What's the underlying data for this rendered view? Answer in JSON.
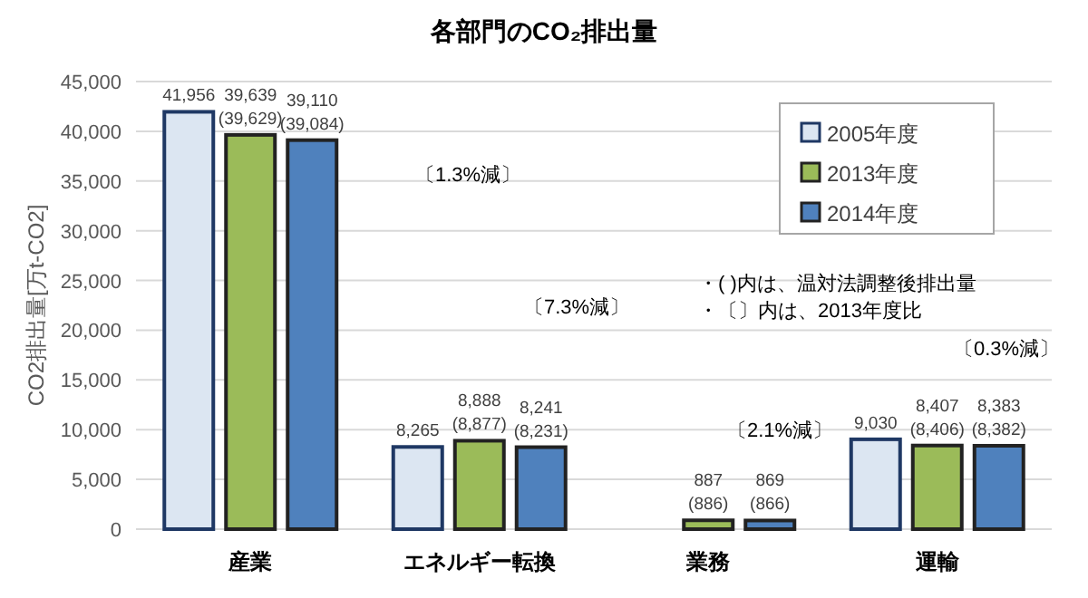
{
  "chart_data": {
    "type": "bar",
    "title": "各部門のCO₂排出量",
    "ylabel": "CO2排出量[万t-CO2]",
    "categories": [
      "産業",
      "エネルギー転換",
      "業務",
      "運輸"
    ],
    "series": [
      {
        "name": "2005年度",
        "color": "#dce6f2",
        "values": [
          41956,
          8265,
          null,
          9030
        ],
        "value_labels": [
          "41,956",
          "8,265",
          null,
          "9,030"
        ]
      },
      {
        "name": "2013年度",
        "color": "#9bbb59",
        "values": [
          39639,
          8888,
          887,
          8407
        ],
        "value_labels": [
          "39,639 (39,629)",
          "8,888 (8,877)",
          "887 (886)",
          "8,407 (8,406)"
        ]
      },
      {
        "name": "2014年度",
        "color": "#4f81bd",
        "values": [
          39110,
          8241,
          869,
          8383
        ],
        "value_labels": [
          "39,110 (39,084)",
          "8,241 (8,231)",
          "869 (866)",
          "8,383 (8,382)"
        ]
      }
    ],
    "ylim": [
      0,
      45000
    ],
    "yticks": [
      {
        "value": 0,
        "label": "0"
      },
      {
        "value": 5000,
        "label": "5,000"
      },
      {
        "value": 10000,
        "label": "10,000"
      },
      {
        "value": 15000,
        "label": "15,000"
      },
      {
        "value": 20000,
        "label": "20,000"
      },
      {
        "value": 25000,
        "label": "25,000"
      },
      {
        "value": 30000,
        "label": "30,000"
      },
      {
        "value": 35000,
        "label": "35,000"
      },
      {
        "value": 40000,
        "label": "40,000"
      },
      {
        "value": 45000,
        "label": "45,000"
      }
    ],
    "grid": "y",
    "legend": "top right",
    "annotations": [
      "〔1.3%減〕",
      "〔7.3%減〕",
      "〔2.1%減〕",
      "〔0.3%減〕",
      "・( )内は、温対法調整後排出量",
      "・〔〕内は、2013年度比"
    ]
  }
}
